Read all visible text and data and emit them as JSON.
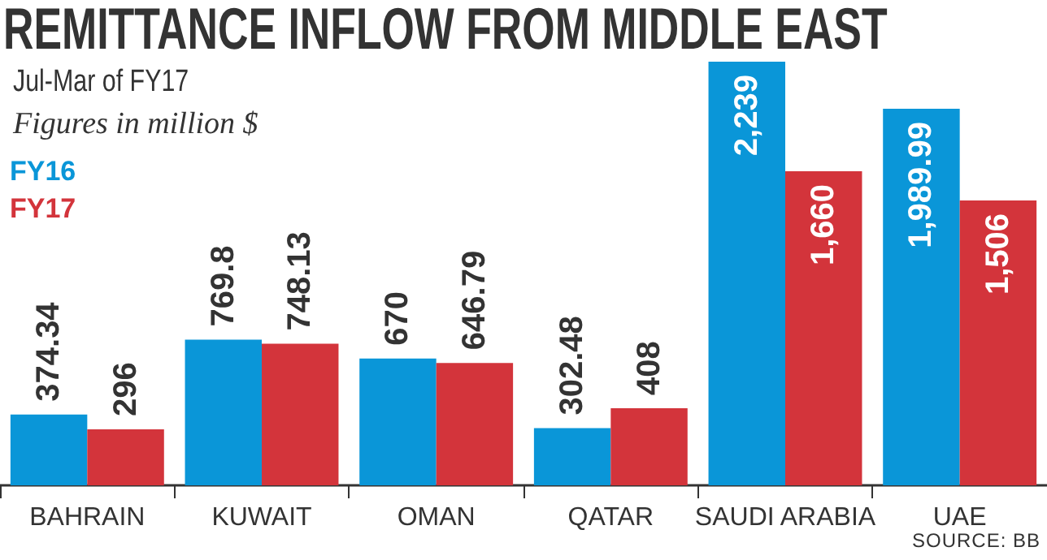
{
  "chart_data": {
    "type": "bar",
    "title": "REMITTANCE INFLOW FROM MIDDLE EAST",
    "subtitle": "Jul-Mar of FY17",
    "annotations": [
      "Figures in million $",
      "SOURCE: BB"
    ],
    "categories": [
      "BAHRAIN",
      "KUWAIT",
      "OMAN",
      "QATAR",
      "SAUDI ARABIA",
      "UAE"
    ],
    "series": [
      {
        "name": "FY16",
        "color": "#0a96d8",
        "values": [
          374.34,
          769.8,
          670,
          302.48,
          2239,
          1989.99
        ],
        "value_labels": [
          "374.34",
          "769.8",
          "670",
          "302.48",
          "2,239",
          "1,989.99"
        ]
      },
      {
        "name": "FY17",
        "color": "#d3343b",
        "values": [
          296,
          748.13,
          646.79,
          408,
          1660,
          1506
        ],
        "value_labels": [
          "296",
          "748.13",
          "646.79",
          "408",
          "1,660",
          "1,506"
        ]
      }
    ],
    "legend": "top left",
    "grid": false
  }
}
